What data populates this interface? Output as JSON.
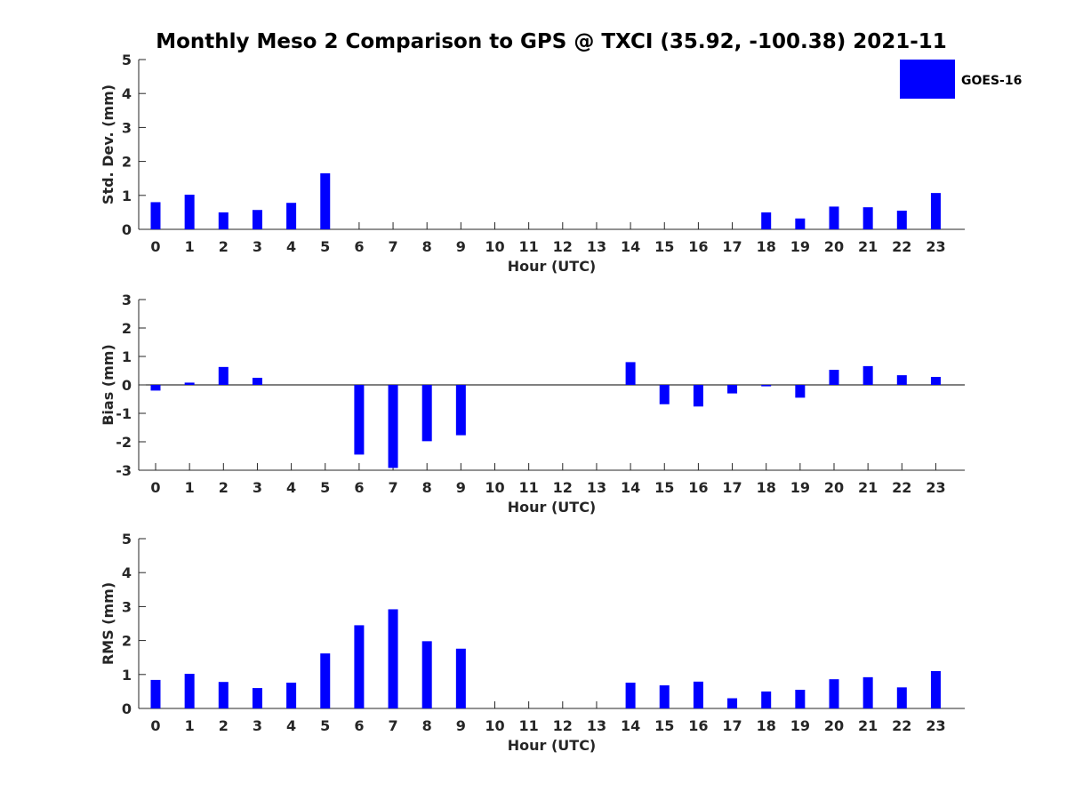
{
  "title": "Monthly Meso 2 Comparison to GPS @ TXCI (35.92, -100.38) 2021-11",
  "legend": {
    "label": "GOES-16",
    "color": "#0000ff",
    "placement": "top-right"
  },
  "chart_data": [
    {
      "type": "bar",
      "name": "std-dev",
      "ylabel": "Std. Dev. (mm)",
      "xlabel": "Hour (UTC)",
      "ylim": [
        0,
        5
      ],
      "yticks": [
        "0",
        "1",
        "2",
        "3",
        "4",
        "5"
      ],
      "categories": [
        "0",
        "1",
        "2",
        "3",
        "4",
        "5",
        "6",
        "7",
        "8",
        "9",
        "10",
        "11",
        "12",
        "13",
        "14",
        "15",
        "16",
        "17",
        "18",
        "19",
        "20",
        "21",
        "22",
        "23"
      ],
      "series": [
        {
          "name": "GOES-16",
          "values": [
            0.8,
            1.02,
            0.5,
            0.57,
            0.78,
            1.65,
            null,
            null,
            null,
            null,
            null,
            null,
            null,
            null,
            null,
            null,
            null,
            null,
            0.5,
            0.32,
            0.67,
            0.65,
            0.55,
            1.07
          ]
        }
      ],
      "grid": false
    },
    {
      "type": "bar",
      "name": "bias",
      "ylabel": "Bias (mm)",
      "xlabel": "Hour (UTC)",
      "ylim": [
        -3,
        3
      ],
      "yticks": [
        "-3",
        "-2",
        "-1",
        "0",
        "1",
        "2",
        "3"
      ],
      "categories": [
        "0",
        "1",
        "2",
        "3",
        "4",
        "5",
        "6",
        "7",
        "8",
        "9",
        "10",
        "11",
        "12",
        "13",
        "14",
        "15",
        "16",
        "17",
        "18",
        "19",
        "20",
        "21",
        "22",
        "23"
      ],
      "series": [
        {
          "name": "GOES-16",
          "values": [
            -0.2,
            0.08,
            0.63,
            0.25,
            null,
            null,
            -2.45,
            -2.92,
            -1.98,
            -1.77,
            null,
            null,
            null,
            null,
            0.8,
            -0.68,
            -0.76,
            -0.3,
            -0.05,
            -0.45,
            0.53,
            0.66,
            0.34,
            0.28
          ]
        }
      ],
      "grid": false
    },
    {
      "type": "bar",
      "name": "rms",
      "ylabel": "RMS (mm)",
      "xlabel": "Hour (UTC)",
      "ylim": [
        0,
        5
      ],
      "yticks": [
        "0",
        "1",
        "2",
        "3",
        "4",
        "5"
      ],
      "categories": [
        "0",
        "1",
        "2",
        "3",
        "4",
        "5",
        "6",
        "7",
        "8",
        "9",
        "10",
        "11",
        "12",
        "13",
        "14",
        "15",
        "16",
        "17",
        "18",
        "19",
        "20",
        "21",
        "22",
        "23"
      ],
      "series": [
        {
          "name": "GOES-16",
          "values": [
            0.84,
            1.02,
            0.78,
            0.6,
            0.76,
            1.62,
            2.45,
            2.92,
            1.98,
            1.76,
            null,
            null,
            null,
            null,
            0.76,
            0.68,
            0.79,
            0.3,
            0.5,
            0.55,
            0.86,
            0.92,
            0.62,
            1.1
          ]
        }
      ],
      "grid": false
    }
  ]
}
